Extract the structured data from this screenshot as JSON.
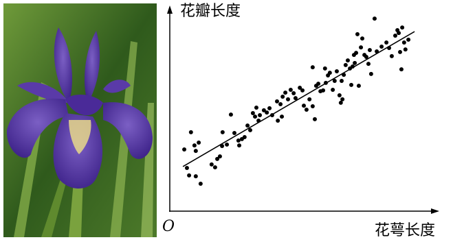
{
  "chart_data": {
    "type": "scatter",
    "y_label": "花瓣长度",
    "x_label": "花萼长度",
    "origin_label": "O",
    "xlim": [
      0,
      100
    ],
    "ylim": [
      0,
      100
    ],
    "series": [
      {
        "color": "#000000",
        "x": [
          5.4,
          7.9,
          9.2,
          10.8,
          7.2,
          9.7,
          11.5,
          6.4,
          15.6,
          16.9,
          17.7,
          18.7,
          19.5,
          19.7,
          21.3,
          22.8,
          24.1,
          25.9,
          26.9,
          27.9,
          29.0,
          30.0,
          31.0,
          31.8,
          32.3,
          33.1,
          33.6,
          35.1,
          36.2,
          37.2,
          38.2,
          40.3,
          41.3,
          41.8,
          42.1,
          43.1,
          44.1,
          45.1,
          46.2,
          46.9,
          48.5,
          49.5,
          50.0,
          51.0,
          52.1,
          53.3,
          54.1,
          54.6,
          55.4,
          56.2,
          57.2,
          57.9,
          58.2,
          59.0,
          59.7,
          60.8,
          61.5,
          62.3,
          63.3,
          63.8,
          64.1,
          64.9,
          65.6,
          66.4,
          67.2,
          67.7,
          68.2,
          68.7,
          69.0,
          69.5,
          70.0,
          70.5,
          71.3,
          71.8,
          72.6,
          73.3,
          74.1,
          74.6,
          75.1,
          76.4,
          77.2,
          79.0,
          80.8,
          81.8,
          82.8,
          84.1,
          84.9,
          85.4,
          85.9,
          86.4,
          86.7,
          87.4,
          87.9,
          89.0,
          64.4,
          53.3,
          40.0,
          25.6,
          9.7
        ],
        "values": [
          30.4,
          38.9,
          32.4,
          33.8,
          17.6,
          17.2,
          13.5,
          21.3,
          23.0,
          21.6,
          25.7,
          27.0,
          32.1,
          38.9,
          32.8,
          47.6,
          38.5,
          32.4,
          35.5,
          36.5,
          42.2,
          39.9,
          48.3,
          46.6,
          51.0,
          44.6,
          47.3,
          49.7,
          48.6,
          50.7,
          47.3,
          44.6,
          52.7,
          46.6,
          56.4,
          58.4,
          55.1,
          59.8,
          58.1,
          55.7,
          60.8,
          59.5,
          52.0,
          50.0,
          55.1,
          51.7,
          45.3,
          61.8,
          62.8,
          59.1,
          59.5,
          70.3,
          63.2,
          66.9,
          68.2,
          59.8,
          64.2,
          68.9,
          57.1,
          53.4,
          64.2,
          67.2,
          72.0,
          74.3,
          70.3,
          62.2,
          71.3,
          77.0,
          73.0,
          78.0,
          87.2,
          61.8,
          80.7,
          85.1,
          77.0,
          76.0,
          72.6,
          79.4,
          67.6,
          94.9,
          78.7,
          81.1,
          83.1,
          80.4,
          76.4,
          86.5,
          89.2,
          87.8,
          78.4,
          69.9,
          90.5,
          83.1,
          79.7,
          84.5,
          55.1,
          70.9,
          54.1,
          34.8,
          29.7
        ]
      }
    ],
    "fit_line": {
      "color": "#000000",
      "x": [
        4.9,
        91.3
      ],
      "values": [
        22.0,
        88.5
      ]
    }
  }
}
